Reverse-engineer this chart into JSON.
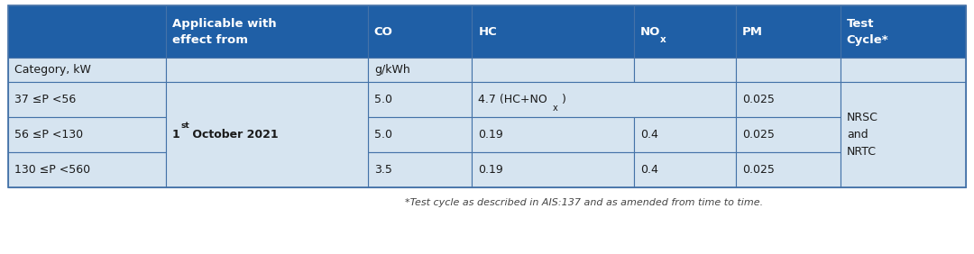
{
  "header_bg": "#1F5FA6",
  "header_text_color": "#FFFFFF",
  "row_bg_light": "#D6E4F0",
  "border_color": "#4472A8",
  "text_color": "#1a1a1a",
  "footnote_color": "#444444",
  "header_row": [
    "",
    "Applicable with\neffect from",
    "CO",
    "HC",
    "NOx",
    "PM",
    "Test\nCycle*"
  ],
  "unit_row": [
    "Category, kW",
    "",
    "g/kWh",
    "",
    "",
    "",
    ""
  ],
  "data_rows": [
    [
      "37 ≤P <56",
      "5.0",
      "4.7 (HC+NOx)",
      "",
      "0.025",
      ""
    ],
    [
      "56 ≤P <130",
      "5.0",
      "0.19",
      "0.4",
      "0.025",
      ""
    ],
    [
      "130 ≤P <560",
      "3.5",
      "0.19",
      "0.4",
      "0.025",
      ""
    ]
  ],
  "merged_last_col_text": "NRSC\nand\nNRTC",
  "footnote": "*Test cycle as described in AIS:137 and as amended from time to time.",
  "fig_width": 10.8,
  "fig_height": 2.82,
  "dpi": 100
}
